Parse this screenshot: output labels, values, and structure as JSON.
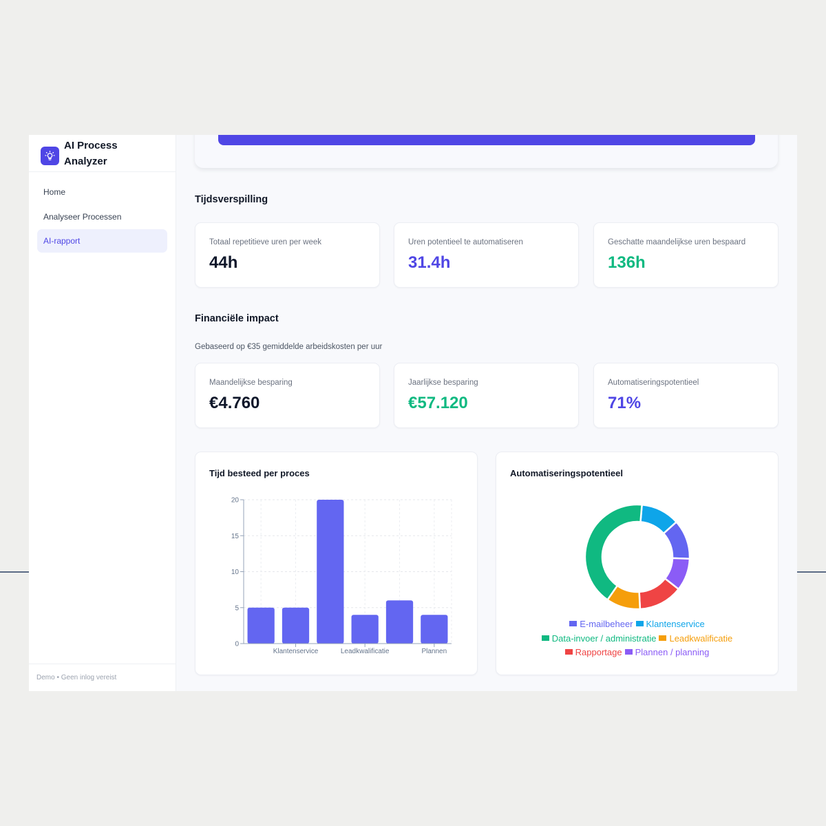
{
  "app": {
    "title_line1": "AI Process",
    "title_line2": "Analyzer",
    "logo_icon": "lightbulb-icon"
  },
  "sidebar": {
    "items": [
      {
        "label": "Home",
        "active": false
      },
      {
        "label": "Analyseer Processen",
        "active": false
      },
      {
        "label": "AI-rapport",
        "active": true
      }
    ],
    "footer": "Demo • Geen inlog vereist"
  },
  "time_waste": {
    "title": "Tijdsverspilling",
    "cards": [
      {
        "label": "Totaal repetitieve uren per week",
        "value": "44h",
        "color": "#0f172a"
      },
      {
        "label": "Uren potentieel te automatiseren",
        "value": "31.4h",
        "color": "#4f46e5"
      },
      {
        "label": "Geschatte maandelijkse uren bespaard",
        "value": "136h",
        "color": "#10b981"
      }
    ]
  },
  "financial": {
    "title": "Financiële impact",
    "subtitle": "Gebaseerd op €35 gemiddelde arbeidskosten per uur",
    "cards": [
      {
        "label": "Maandelijkse besparing",
        "value": "€4.760",
        "color": "#0f172a"
      },
      {
        "label": "Jaarlijkse besparing",
        "value": "€57.120",
        "color": "#10b981"
      },
      {
        "label": "Automatiseringspotentieel",
        "value": "71%",
        "color": "#4f46e5"
      }
    ]
  },
  "colors": {
    "accent": "#4f46e5",
    "bar": "#6366f1",
    "success": "#10b981"
  },
  "chart_data": [
    {
      "type": "bar",
      "title": "Tijd besteed per proces",
      "categories": [
        "E-mailbeheer",
        "Klantenservice",
        "Data-invoer / administratie",
        "Leadkwalificatie",
        "Rapportage",
        "Plannen / planning"
      ],
      "visible_tick_labels": [
        "",
        "Klantenservice",
        "",
        "Leadkwalificatie",
        "",
        "Plannen"
      ],
      "values": [
        5,
        5,
        20,
        4,
        6,
        4
      ],
      "xlabel": "",
      "ylabel": "",
      "ylim": [
        0,
        20
      ],
      "yticks": [
        0,
        5,
        10,
        15,
        20
      ],
      "grid": true,
      "color": "#6366f1"
    },
    {
      "type": "pie",
      "variant": "doughnut",
      "title": "Automatiseringspotentieel",
      "legend_position": "bottom",
      "labels": [
        "E-mailbeheer",
        "Klantenservice",
        "Data-invoer / administratie",
        "Leadkwalificatie",
        "Rapportage",
        "Plannen / planning"
      ],
      "values": [
        12.2,
        12.0,
        41.7,
        10.5,
        13.6,
        10.0
      ],
      "colors": [
        "#6366f1",
        "#0ea5e9",
        "#10b981",
        "#f59e0b",
        "#ef4444",
        "#8b5cf6"
      ],
      "segment_order_clockwise_from_top": [
        "Klantenservice",
        "E-mailbeheer",
        "Plannen / planning",
        "Rapportage",
        "Leadkwalificatie",
        "Data-invoer / administratie"
      ]
    }
  ]
}
